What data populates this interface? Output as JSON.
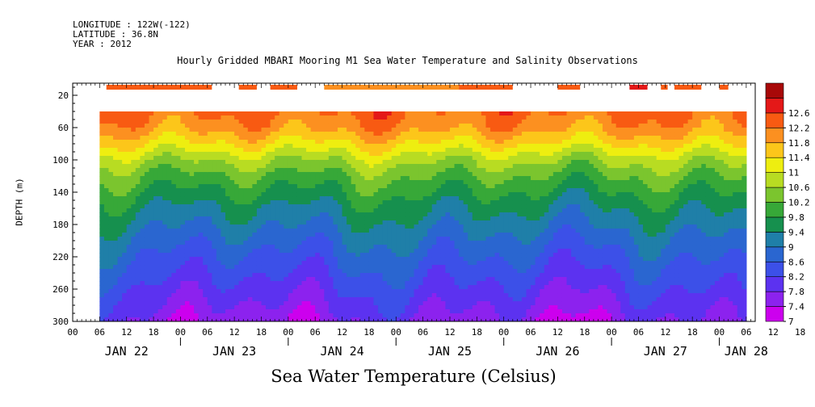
{
  "header": {
    "longitude": "LONGITUDE : 122W(-122)",
    "latitude": "LATITUDE : 36.8N",
    "year": "YEAR : 2012"
  },
  "chart_data": {
    "type": "heatmap",
    "title": "Hourly Gridded MBARI Mooring M1 Sea Water Temperature and Salinity Observations",
    "xlabel": "",
    "ylabel": "DEPTH (m)",
    "colorbar_title": "Sea Water Temperature (Celsius)",
    "ylim": [
      300,
      5
    ],
    "y_ticks": [
      20,
      60,
      100,
      140,
      180,
      220,
      260,
      300
    ],
    "x_hour_ticks": [
      "00",
      "06",
      "12",
      "18",
      "00",
      "06",
      "12",
      "18",
      "00",
      "06",
      "12",
      "18",
      "00",
      "06",
      "12",
      "18",
      "00",
      "06",
      "12",
      "18",
      "00",
      "06",
      "12",
      "18",
      "00",
      "06",
      "12",
      "18",
      "00",
      "06"
    ],
    "x_day_labels": [
      "JAN 22",
      "JAN 23",
      "JAN 24",
      "JAN 25",
      "JAN 26",
      "JAN 27",
      "JAN 28"
    ],
    "colorbar_levels": [
      "12.6",
      "12.2",
      "11.8",
      "11.4",
      "11",
      "10.6",
      "10.2",
      "9.8",
      "9.4",
      "9",
      "8.6",
      "8.2",
      "7.8",
      "7.4",
      "7"
    ],
    "color_scale": [
      "#cc00ee",
      "#8c22ee",
      "#5c32f0",
      "#3c50e8",
      "#2a66d0",
      "#1f7fa8",
      "#16904e",
      "#37a838",
      "#7bc52e",
      "#b8dc22",
      "#eeee10",
      "#fcc61a",
      "#fc9020",
      "#f85a12",
      "#e41818",
      "#a80808"
    ],
    "surface_depth_m": 10,
    "surface_temperature_segments": [
      {
        "start_hour": 7.5,
        "end_hour": 31,
        "temp": 12.0
      },
      {
        "start_hour": 37,
        "end_hour": 41,
        "temp": 12.0
      },
      {
        "start_hour": 44,
        "end_hour": 50,
        "temp": 12.0
      },
      {
        "start_hour": 56,
        "end_hour": 86,
        "temp": 11.4
      },
      {
        "start_hour": 86,
        "end_hour": 98,
        "temp": 12.0
      },
      {
        "start_hour": 108,
        "end_hour": 113,
        "temp": 12.0
      },
      {
        "start_hour": 124,
        "end_hour": 128,
        "temp": 12.2
      },
      {
        "start_hour": 131,
        "end_hour": 132.5,
        "temp": 12.0
      },
      {
        "start_hour": 134,
        "end_hour": 140,
        "temp": 12.0
      },
      {
        "start_hour": 144,
        "end_hour": 146,
        "temp": 12.0
      }
    ],
    "profile_data_start_hour": 6,
    "profile_data_end_hour": 150,
    "profile_top_depth_m": 40,
    "temperature_profile_by_depth": [
      {
        "depth": 40,
        "temp": 11.9
      },
      {
        "depth": 60,
        "temp": 11.6
      },
      {
        "depth": 80,
        "temp": 11.0
      },
      {
        "depth": 100,
        "temp": 10.3
      },
      {
        "depth": 120,
        "temp": 9.8
      },
      {
        "depth": 140,
        "temp": 9.4
      },
      {
        "depth": 160,
        "temp": 9.05
      },
      {
        "depth": 180,
        "temp": 8.75
      },
      {
        "depth": 200,
        "temp": 8.45
      },
      {
        "depth": 220,
        "temp": 8.2
      },
      {
        "depth": 240,
        "temp": 7.95
      },
      {
        "depth": 260,
        "temp": 7.7
      },
      {
        "depth": 280,
        "temp": 7.45
      },
      {
        "depth": 300,
        "temp": 7.2
      }
    ]
  }
}
